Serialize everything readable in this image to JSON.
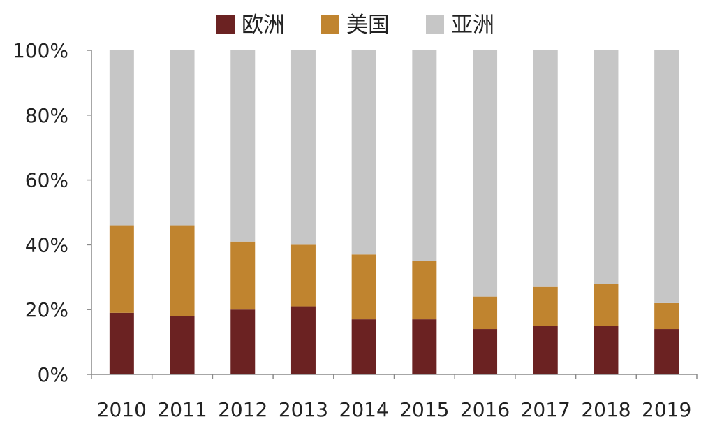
{
  "chart_data": {
    "type": "bar",
    "stacked": true,
    "categories": [
      "2010",
      "2011",
      "2012",
      "2013",
      "2014",
      "2015",
      "2016",
      "2017",
      "2018",
      "2019"
    ],
    "series": [
      {
        "name": "欧洲",
        "color": "#6B2222",
        "values": [
          19,
          18,
          20,
          21,
          17,
          17,
          14,
          15,
          15,
          14
        ]
      },
      {
        "name": "美国",
        "color": "#C0842F",
        "values": [
          27,
          28,
          21,
          19,
          20,
          18,
          10,
          12,
          13,
          8
        ]
      },
      {
        "name": "亚洲",
        "color": "#C6C6C6",
        "values": [
          54,
          54,
          59,
          60,
          63,
          65,
          76,
          73,
          72,
          78
        ]
      }
    ],
    "yticks": [
      "0%",
      "20%",
      "40%",
      "60%",
      "80%",
      "100%"
    ],
    "ylim": [
      0,
      100
    ],
    "legend_position": "top",
    "grid": false
  }
}
